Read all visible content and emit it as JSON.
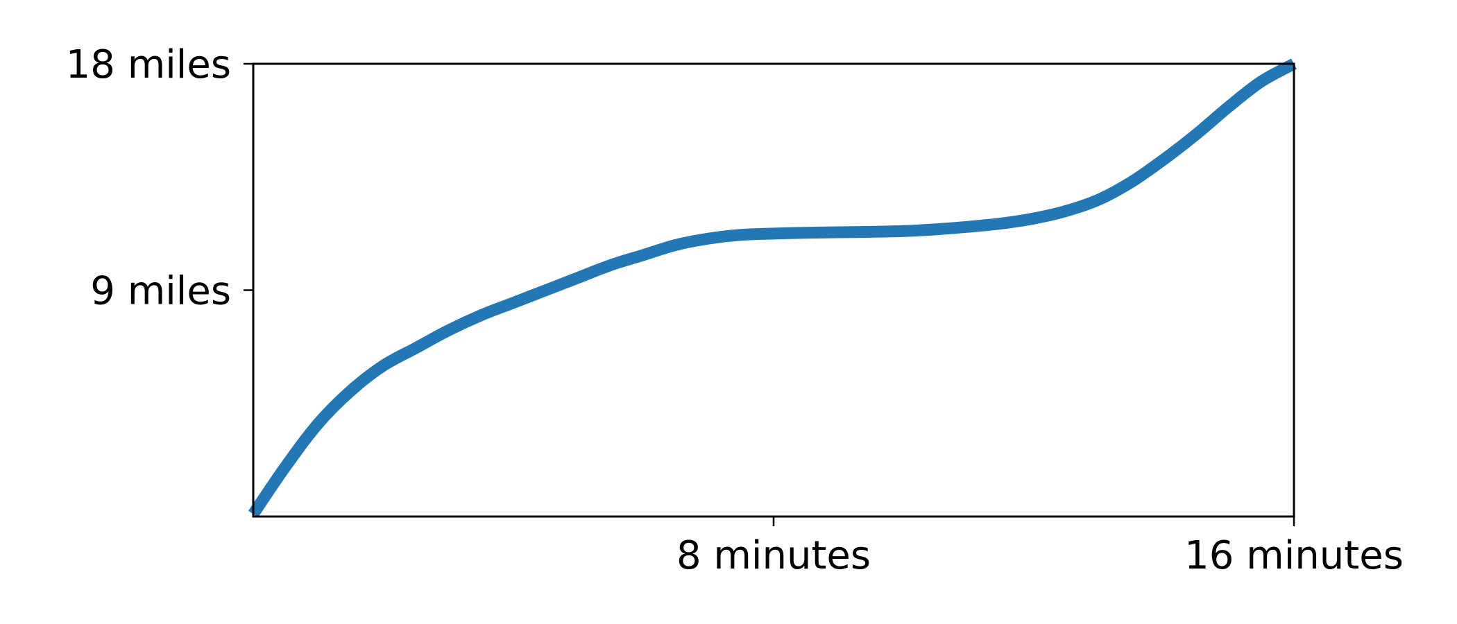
{
  "chart_data": {
    "type": "line",
    "title": "",
    "xlabel": "",
    "ylabel": "",
    "xlim": [
      0,
      16
    ],
    "ylim": [
      0,
      18
    ],
    "x_ticks": [
      {
        "value": 8,
        "label": "8 minutes"
      },
      {
        "value": 16,
        "label": "16 minutes"
      }
    ],
    "y_ticks": [
      {
        "value": 9,
        "label": "9 miles"
      },
      {
        "value": 18,
        "label": "18 miles"
      }
    ],
    "grid": false,
    "legend": "none",
    "series": [
      {
        "color": "#2377b4",
        "x": [
          0,
          0.5,
          1,
          1.5,
          2,
          2.5,
          3,
          3.5,
          4,
          4.5,
          5,
          5.5,
          6,
          6.5,
          7,
          7.5,
          8,
          8.5,
          9,
          9.5,
          10,
          10.5,
          11,
          11.5,
          12,
          12.5,
          13,
          13.5,
          14,
          14.5,
          15,
          15.5,
          16
        ],
        "y": [
          0.1,
          2.0,
          3.7,
          5.0,
          6.0,
          6.7,
          7.4,
          8.0,
          8.5,
          9.0,
          9.5,
          10.0,
          10.4,
          10.8,
          11.05,
          11.2,
          11.25,
          11.28,
          11.3,
          11.32,
          11.35,
          11.42,
          11.52,
          11.65,
          11.85,
          12.15,
          12.6,
          13.3,
          14.2,
          15.2,
          16.3,
          17.3,
          18.0
        ]
      }
    ]
  }
}
